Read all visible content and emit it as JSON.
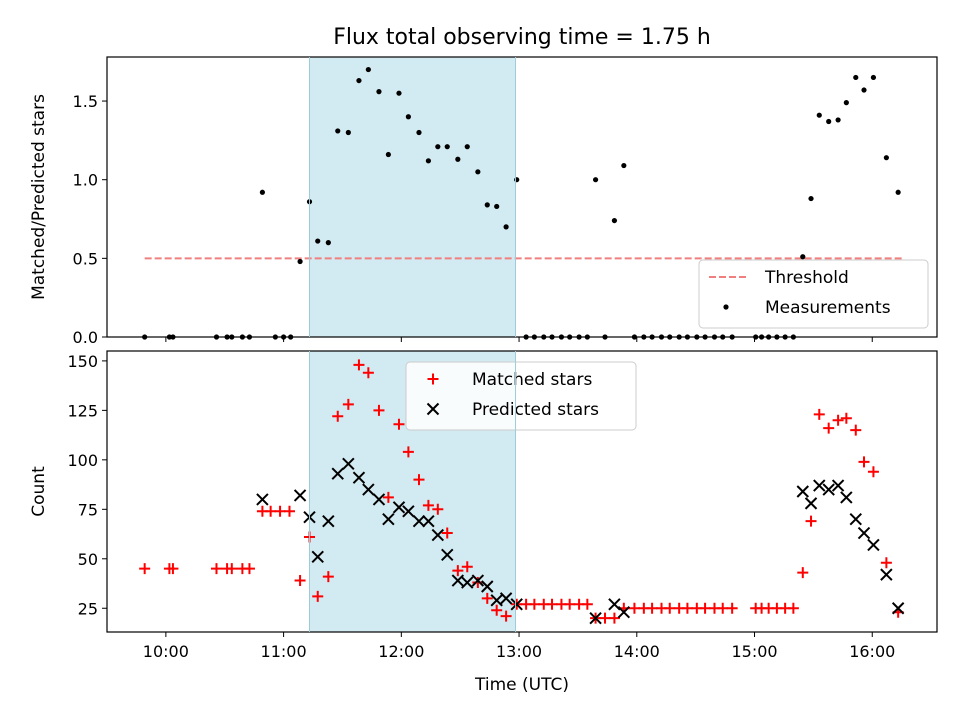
{
  "chart_data": [
    {
      "type": "scatter",
      "title": "Flux total observing time = 1.75 h",
      "xlabel": "",
      "ylabel": "Matched/Predicted stars",
      "xlim": [
        9.5,
        16.55
      ],
      "ylim": [
        0,
        1.78
      ],
      "yticks": [
        0.0,
        0.5,
        1.0,
        1.5
      ],
      "ytick_labels": [
        "0.0",
        "0.5",
        "1.0",
        "1.5"
      ],
      "xticks": [
        10,
        11,
        12,
        13,
        14,
        15,
        16
      ],
      "shaded_region": {
        "x0": 11.22,
        "x1": 12.97,
        "color": "#add8e6"
      },
      "threshold": {
        "name": "Threshold",
        "y": 0.5,
        "x0": 9.82,
        "x1": 16.25,
        "color": "#f08080"
      },
      "legend": {
        "position": "lower right"
      },
      "series": [
        {
          "name": "Measurements",
          "marker": "dot",
          "color": "#000000",
          "points": [
            [
              9.82,
              0
            ],
            [
              10.03,
              0
            ],
            [
              10.06,
              0
            ],
            [
              10.43,
              0
            ],
            [
              10.52,
              0
            ],
            [
              10.56,
              0
            ],
            [
              10.65,
              0
            ],
            [
              10.71,
              0
            ],
            [
              10.82,
              0.92
            ],
            [
              10.93,
              0
            ],
            [
              11.0,
              0
            ],
            [
              11.06,
              0
            ],
            [
              11.14,
              0.48
            ],
            [
              11.22,
              0.86
            ],
            [
              11.29,
              0.61
            ],
            [
              11.38,
              0.6
            ],
            [
              11.46,
              1.31
            ],
            [
              11.55,
              1.3
            ],
            [
              11.64,
              1.63
            ],
            [
              11.72,
              1.7
            ],
            [
              11.81,
              1.56
            ],
            [
              11.89,
              1.16
            ],
            [
              11.98,
              1.55
            ],
            [
              12.06,
              1.4
            ],
            [
              12.15,
              1.3
            ],
            [
              12.23,
              1.12
            ],
            [
              12.31,
              1.21
            ],
            [
              12.39,
              1.21
            ],
            [
              12.48,
              1.13
            ],
            [
              12.56,
              1.21
            ],
            [
              12.65,
              1.05
            ],
            [
              12.73,
              0.84
            ],
            [
              12.81,
              0.83
            ],
            [
              12.89,
              0.7
            ],
            [
              12.98,
              1.0
            ],
            [
              13.06,
              0
            ],
            [
              13.13,
              0
            ],
            [
              13.21,
              0
            ],
            [
              13.28,
              0
            ],
            [
              13.36,
              0
            ],
            [
              13.43,
              0
            ],
            [
              13.51,
              0
            ],
            [
              13.58,
              0
            ],
            [
              13.65,
              1.0
            ],
            [
              13.73,
              0
            ],
            [
              13.81,
              0.74
            ],
            [
              13.89,
              1.09
            ],
            [
              13.98,
              0
            ],
            [
              14.06,
              0
            ],
            [
              14.13,
              0
            ],
            [
              14.21,
              0
            ],
            [
              14.28,
              0
            ],
            [
              14.36,
              0
            ],
            [
              14.43,
              0
            ],
            [
              14.51,
              0
            ],
            [
              14.58,
              0
            ],
            [
              14.66,
              0
            ],
            [
              14.73,
              0
            ],
            [
              14.81,
              0
            ],
            [
              15.01,
              0
            ],
            [
              15.06,
              0
            ],
            [
              15.12,
              0
            ],
            [
              15.19,
              0
            ],
            [
              15.26,
              0
            ],
            [
              15.33,
              0
            ],
            [
              15.41,
              0.51
            ],
            [
              15.48,
              0.88
            ],
            [
              15.55,
              1.41
            ],
            [
              15.63,
              1.37
            ],
            [
              15.71,
              1.38
            ],
            [
              15.78,
              1.49
            ],
            [
              15.86,
              1.65
            ],
            [
              15.93,
              1.57
            ],
            [
              16.01,
              1.65
            ],
            [
              16.12,
              1.14
            ],
            [
              16.22,
              0.92
            ]
          ]
        }
      ]
    },
    {
      "type": "scatter",
      "title": "",
      "xlabel": "Time (UTC)",
      "ylabel": "Count",
      "xlim": [
        9.5,
        16.55
      ],
      "ylim": [
        13,
        155
      ],
      "yticks": [
        25,
        50,
        75,
        100,
        125,
        150
      ],
      "ytick_labels": [
        "25",
        "50",
        "75",
        "100",
        "125",
        "150"
      ],
      "xticks": [
        10,
        11,
        12,
        13,
        14,
        15,
        16
      ],
      "xtick_labels": [
        "10:00",
        "11:00",
        "12:00",
        "13:00",
        "14:00",
        "15:00",
        "16:00"
      ],
      "shaded_region": {
        "x0": 11.22,
        "x1": 12.97,
        "color": "#add8e6"
      },
      "legend": {
        "position": "upper center"
      },
      "series": [
        {
          "name": "Matched stars",
          "marker": "plus",
          "color": "#ff0000",
          "points": [
            [
              9.82,
              45
            ],
            [
              10.03,
              45
            ],
            [
              10.06,
              45
            ],
            [
              10.43,
              45
            ],
            [
              10.52,
              45
            ],
            [
              10.56,
              45
            ],
            [
              10.65,
              45
            ],
            [
              10.71,
              45
            ],
            [
              10.82,
              74
            ],
            [
              10.89,
              74
            ],
            [
              10.97,
              74
            ],
            [
              11.05,
              74
            ],
            [
              11.14,
              39
            ],
            [
              11.22,
              61
            ],
            [
              11.29,
              31
            ],
            [
              11.38,
              41
            ],
            [
              11.46,
              122
            ],
            [
              11.55,
              128
            ],
            [
              11.64,
              148
            ],
            [
              11.72,
              144
            ],
            [
              11.81,
              125
            ],
            [
              11.89,
              81
            ],
            [
              11.98,
              118
            ],
            [
              12.06,
              104
            ],
            [
              12.15,
              90
            ],
            [
              12.23,
              77
            ],
            [
              12.31,
              75
            ],
            [
              12.39,
              63
            ],
            [
              12.48,
              44
            ],
            [
              12.56,
              46
            ],
            [
              12.65,
              38
            ],
            [
              12.73,
              30
            ],
            [
              12.81,
              24
            ],
            [
              12.89,
              21
            ],
            [
              12.98,
              27
            ],
            [
              13.06,
              27
            ],
            [
              13.13,
              27
            ],
            [
              13.21,
              27
            ],
            [
              13.28,
              27
            ],
            [
              13.36,
              27
            ],
            [
              13.43,
              27
            ],
            [
              13.51,
              27
            ],
            [
              13.58,
              27
            ],
            [
              13.65,
              20
            ],
            [
              13.73,
              20
            ],
            [
              13.81,
              20
            ],
            [
              13.89,
              25
            ],
            [
              13.98,
              25
            ],
            [
              14.06,
              25
            ],
            [
              14.13,
              25
            ],
            [
              14.21,
              25
            ],
            [
              14.28,
              25
            ],
            [
              14.36,
              25
            ],
            [
              14.43,
              25
            ],
            [
              14.51,
              25
            ],
            [
              14.58,
              25
            ],
            [
              14.66,
              25
            ],
            [
              14.73,
              25
            ],
            [
              14.81,
              25
            ],
            [
              15.01,
              25
            ],
            [
              15.06,
              25
            ],
            [
              15.12,
              25
            ],
            [
              15.19,
              25
            ],
            [
              15.26,
              25
            ],
            [
              15.33,
              25
            ],
            [
              15.41,
              43
            ],
            [
              15.48,
              69
            ],
            [
              15.55,
              123
            ],
            [
              15.63,
              116
            ],
            [
              15.71,
              120
            ],
            [
              15.78,
              121
            ],
            [
              15.86,
              115
            ],
            [
              15.93,
              99
            ],
            [
              16.01,
              94
            ],
            [
              16.12,
              48
            ],
            [
              16.22,
              23
            ]
          ]
        },
        {
          "name": "Predicted stars",
          "marker": "x",
          "color": "#000000",
          "points": [
            [
              10.82,
              80
            ],
            [
              11.14,
              82
            ],
            [
              11.22,
              71
            ],
            [
              11.29,
              51
            ],
            [
              11.38,
              69
            ],
            [
              11.46,
              93
            ],
            [
              11.55,
              98
            ],
            [
              11.64,
              91
            ],
            [
              11.72,
              85
            ],
            [
              11.81,
              80
            ],
            [
              11.89,
              70
            ],
            [
              11.98,
              76
            ],
            [
              12.06,
              74
            ],
            [
              12.15,
              69
            ],
            [
              12.23,
              69
            ],
            [
              12.31,
              62
            ],
            [
              12.39,
              52
            ],
            [
              12.48,
              39
            ],
            [
              12.56,
              38
            ],
            [
              12.65,
              39
            ],
            [
              12.73,
              36
            ],
            [
              12.81,
              29
            ],
            [
              12.89,
              30
            ],
            [
              12.98,
              27
            ],
            [
              13.65,
              20
            ],
            [
              13.81,
              27
            ],
            [
              13.89,
              23
            ],
            [
              15.41,
              84
            ],
            [
              15.48,
              78
            ],
            [
              15.55,
              87
            ],
            [
              15.63,
              85
            ],
            [
              15.71,
              87
            ],
            [
              15.78,
              81
            ],
            [
              15.86,
              70
            ],
            [
              15.93,
              63
            ],
            [
              16.01,
              57
            ],
            [
              16.12,
              42
            ],
            [
              16.22,
              25
            ]
          ]
        }
      ]
    }
  ]
}
